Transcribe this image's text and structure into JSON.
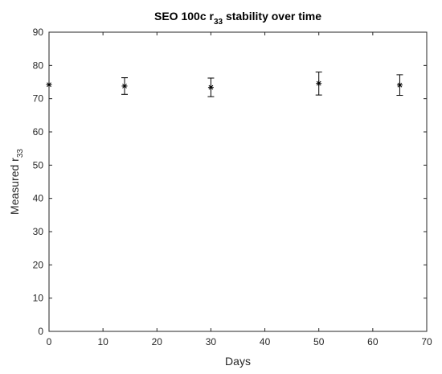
{
  "chart_data": {
    "type": "scatter",
    "title": {
      "text": "SEO 100c r",
      "subscript": "33",
      "suffix": " stability over time"
    },
    "xlabel": "Days",
    "ylabel": {
      "text": "Measured r",
      "subscript": "33"
    },
    "xlim": [
      0,
      70
    ],
    "ylim": [
      0,
      90
    ],
    "xticks": [
      0,
      10,
      20,
      30,
      40,
      50,
      60,
      70
    ],
    "yticks": [
      0,
      10,
      20,
      30,
      40,
      50,
      60,
      70,
      80,
      90
    ],
    "grid": false,
    "marker": "asterisk",
    "series": [
      {
        "x": [
          0,
          14,
          30,
          50,
          65
        ],
        "y": [
          74.2,
          73.8,
          73.4,
          74.6,
          74.1
        ],
        "error": [
          [
            74.2,
            74.2
          ],
          [
            71.3,
            76.3
          ],
          [
            70.6,
            76.2
          ],
          [
            71.1,
            78.0
          ],
          [
            71.0,
            77.2
          ]
        ]
      }
    ]
  },
  "colors": {
    "axis": "#262626",
    "data": "#000000",
    "background": "#ffffff"
  }
}
